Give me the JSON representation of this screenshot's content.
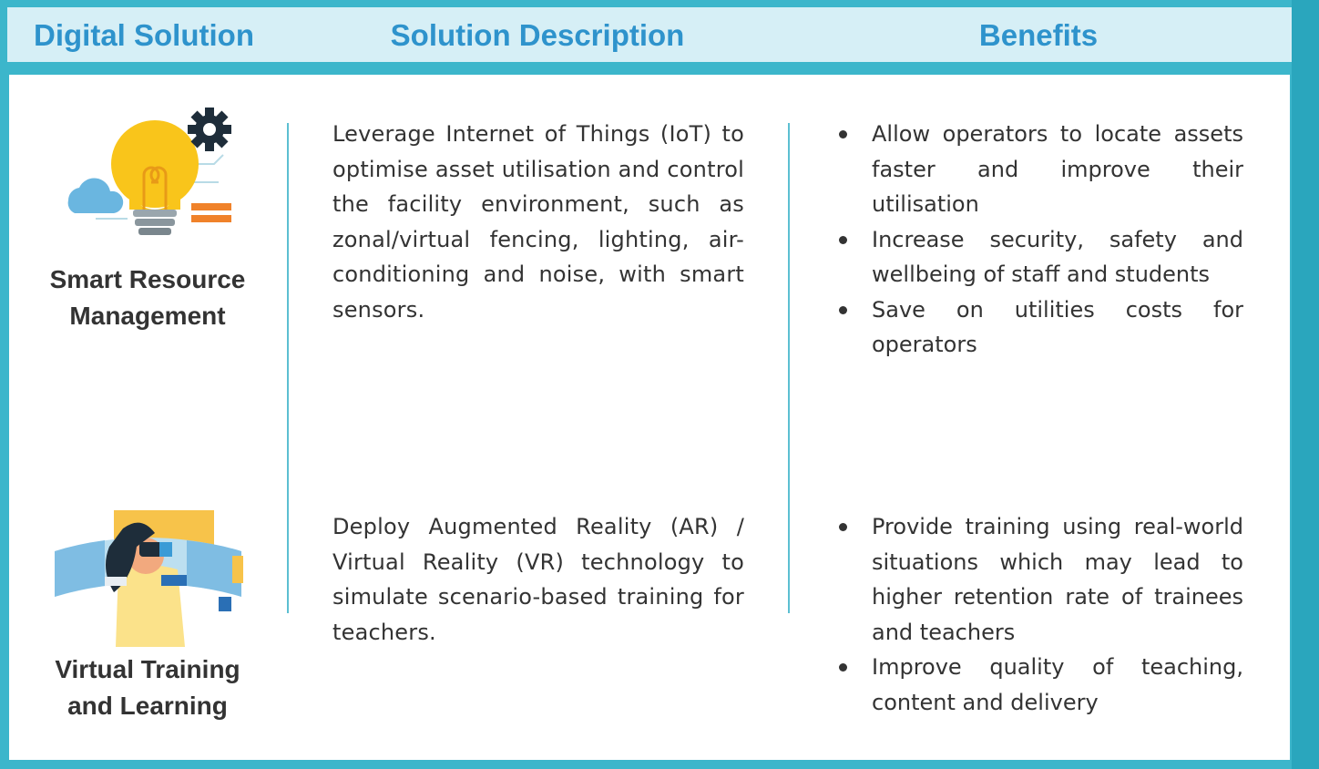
{
  "header": {
    "columns": [
      "Digital Solution",
      "Solution Description",
      "Benefits"
    ]
  },
  "rows": [
    {
      "name": "Smart Resource Management",
      "description": "Leverage Internet of Things (IoT) to optimise asset utilisation and control the facility environment, such as zonal/virtual fencing, lighting, air-conditioning and noise, with smart sensors.",
      "benefits": [
        "Allow operators to locate assets faster and improve their utilisation",
        "Increase security, safety and wellbeing of staff and students",
        "Save on utilities costs for operators"
      ]
    },
    {
      "name": "Virtual Training and Learning",
      "description": "Deploy Augmented Reality (AR) / Virtual Reality (VR) technology to simulate scenario-based training for teachers.",
      "benefits": [
        "Provide training using real-world situations which may lead to higher retention rate of trainees and teachers",
        "Improve quality of teaching, content and delivery"
      ]
    }
  ]
}
